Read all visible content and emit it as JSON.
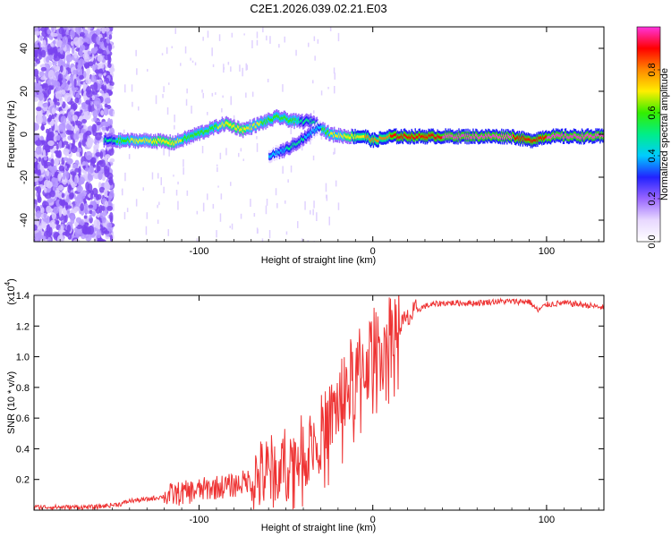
{
  "title": "C2E1.2026.039.02.21.E03",
  "chart_data": [
    {
      "type": "heatmap",
      "xlabel": "Height of straight line (km)",
      "ylabel": "Frequency (Hz)",
      "xlim": [
        -195,
        133
      ],
      "ylim": [
        -50,
        50
      ],
      "xticks": [
        -100,
        0,
        100
      ],
      "xtick_labels": [
        "-100",
        "0",
        "100"
      ],
      "yticks": [
        -40,
        -20,
        0,
        20,
        40
      ],
      "ytick_labels": [
        "-40",
        "-20",
        "0",
        "20",
        "40"
      ],
      "colorbar": {
        "label": "Normalized spectral amplitude",
        "range": [
          0,
          1
        ],
        "ticks": [
          0.0,
          0.2,
          0.4,
          0.6,
          0.8
        ],
        "tick_labels": [
          "0.0",
          "0.2",
          "0.4",
          "0.6",
          "0.8"
        ],
        "colors": [
          "#ffffff",
          "#e8d8ff",
          "#9966ff",
          "#2222ff",
          "#00ccff",
          "#00ee88",
          "#33ee00",
          "#ffee00",
          "#ff8800",
          "#ff0000",
          "#ff33dd"
        ]
      },
      "ridge": [
        {
          "x": -155,
          "y": -3,
          "a": 0.45
        },
        {
          "x": -140,
          "y": -3,
          "a": 0.65
        },
        {
          "x": -125,
          "y": -3,
          "a": 0.7
        },
        {
          "x": -115,
          "y": -4,
          "a": 0.7
        },
        {
          "x": -105,
          "y": -1,
          "a": 0.6
        },
        {
          "x": -95,
          "y": 2,
          "a": 0.6
        },
        {
          "x": -85,
          "y": 5,
          "a": 0.7
        },
        {
          "x": -75,
          "y": 2,
          "a": 0.7
        },
        {
          "x": -65,
          "y": 5,
          "a": 0.65
        },
        {
          "x": -55,
          "y": 8,
          "a": 0.6
        },
        {
          "x": -45,
          "y": 6,
          "a": 0.55
        },
        {
          "x": -35,
          "y": 6,
          "a": 0.5
        },
        {
          "x": -25,
          "y": 0,
          "a": 0.65
        },
        {
          "x": -15,
          "y": -1,
          "a": 0.7
        },
        {
          "x": -5,
          "y": -1,
          "a": 0.75
        },
        {
          "x": 0,
          "y": -3,
          "a": 0.8
        },
        {
          "x": 10,
          "y": -1,
          "a": 0.85
        },
        {
          "x": 20,
          "y": -1,
          "a": 0.9
        },
        {
          "x": 40,
          "y": -1,
          "a": 0.95
        },
        {
          "x": 60,
          "y": -1,
          "a": 0.95
        },
        {
          "x": 80,
          "y": -1,
          "a": 0.95
        },
        {
          "x": 90,
          "y": -3,
          "a": 0.9
        },
        {
          "x": 100,
          "y": -1,
          "a": 0.95
        },
        {
          "x": 120,
          "y": -1,
          "a": 0.95
        },
        {
          "x": 133,
          "y": -1,
          "a": 0.95
        }
      ],
      "branch": [
        {
          "x": -60,
          "y": -10,
          "a": 0.4
        },
        {
          "x": -50,
          "y": -7,
          "a": 0.45
        },
        {
          "x": -40,
          "y": -2,
          "a": 0.45
        },
        {
          "x": -30,
          "y": 4,
          "a": 0.4
        }
      ]
    },
    {
      "type": "line",
      "xlabel": "Height of straight line (km)",
      "ylabel": "SNR (10 * v/v)",
      "scale_label_base": "(x10",
      "scale_label_exp": "4",
      "scale_label_end": ")",
      "xlim": [
        -195,
        133
      ],
      "ylim": [
        0,
        1.4
      ],
      "xticks": [
        -100,
        0,
        100
      ],
      "xtick_labels": [
        "-100",
        "0",
        "100"
      ],
      "yticks": [
        0.2,
        0.4,
        0.6,
        0.8,
        1.0,
        1.2,
        1.4
      ],
      "ytick_labels": [
        "0.2",
        "0.4",
        "0.6",
        "0.8",
        "1.0",
        "1.2",
        "1.4"
      ],
      "line_color": "#ee3333",
      "series": [
        {
          "name": "SNR",
          "x": [
            -195,
            -160,
            -145,
            -140,
            -130,
            -120,
            -110,
            -100,
            -90,
            -80,
            -70,
            -60,
            -50,
            -40,
            -30,
            -25,
            -20,
            -15,
            -10,
            -5,
            0,
            5,
            8,
            10,
            15,
            20,
            25,
            30,
            40,
            50,
            60,
            70,
            80,
            90,
            95,
            100,
            110,
            120,
            133
          ],
          "y": [
            0.02,
            0.02,
            0.04,
            0.06,
            0.07,
            0.09,
            0.11,
            0.13,
            0.15,
            0.16,
            0.2,
            0.24,
            0.3,
            0.38,
            0.5,
            0.58,
            0.7,
            0.8,
            0.86,
            0.95,
            1.02,
            1.08,
            1.12,
            1.15,
            1.2,
            1.24,
            1.3,
            1.33,
            1.35,
            1.35,
            1.35,
            1.36,
            1.36,
            1.36,
            1.3,
            1.34,
            1.35,
            1.34,
            1.32
          ]
        }
      ]
    }
  ]
}
